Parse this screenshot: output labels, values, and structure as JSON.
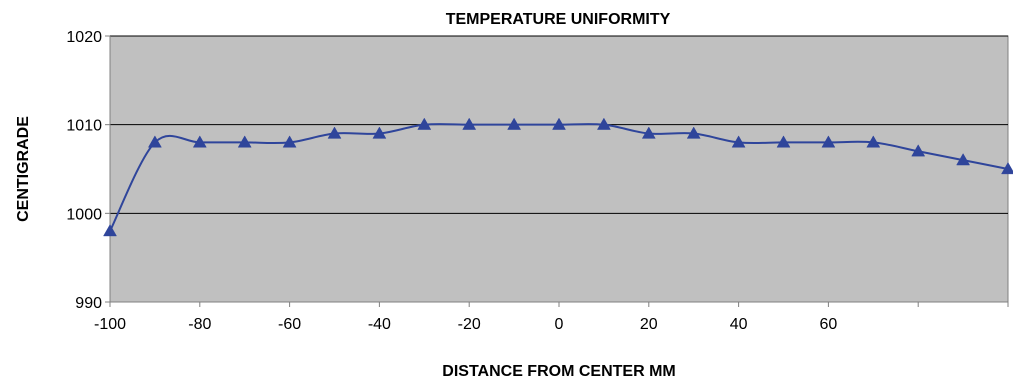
{
  "chart_data": {
    "type": "line",
    "title": "TEMPERATURE UNIFORMITY",
    "xlabel": "DISTANCE FROM CENTER MM",
    "ylabel": "CENTIGRADE",
    "ylim": [
      990,
      1020
    ],
    "xlim": [
      -100,
      100
    ],
    "y_ticks": [
      990,
      1000,
      1010,
      1020
    ],
    "x_ticks": [
      -100,
      -80,
      -60,
      -40,
      -20,
      0,
      20,
      40,
      60,
      80,
      100
    ],
    "x_tick_labels": [
      "-100",
      "-80",
      "-60",
      "-40",
      "-20",
      "0",
      "20",
      "40",
      "60",
      "",
      ""
    ],
    "grid": "horizontal major lines",
    "legend": "none",
    "series": [
      {
        "x": [
          -100,
          -90,
          -80,
          -70,
          -60,
          -50,
          -40,
          -30,
          -20,
          -10,
          0,
          10,
          20,
          30,
          40,
          50,
          60,
          70,
          80,
          90,
          100
        ],
        "values": [
          998,
          1008,
          1008,
          1008,
          1008,
          1009,
          1009,
          1010,
          1010,
          1010,
          1010,
          1010,
          1009,
          1009,
          1008,
          1008,
          1008,
          1008,
          1007,
          1006,
          1005
        ]
      }
    ],
    "colors": {
      "plot_background": "#c0c0c0",
      "series": "#2f459b",
      "gridline": "#000000",
      "axis": "#808080"
    }
  }
}
